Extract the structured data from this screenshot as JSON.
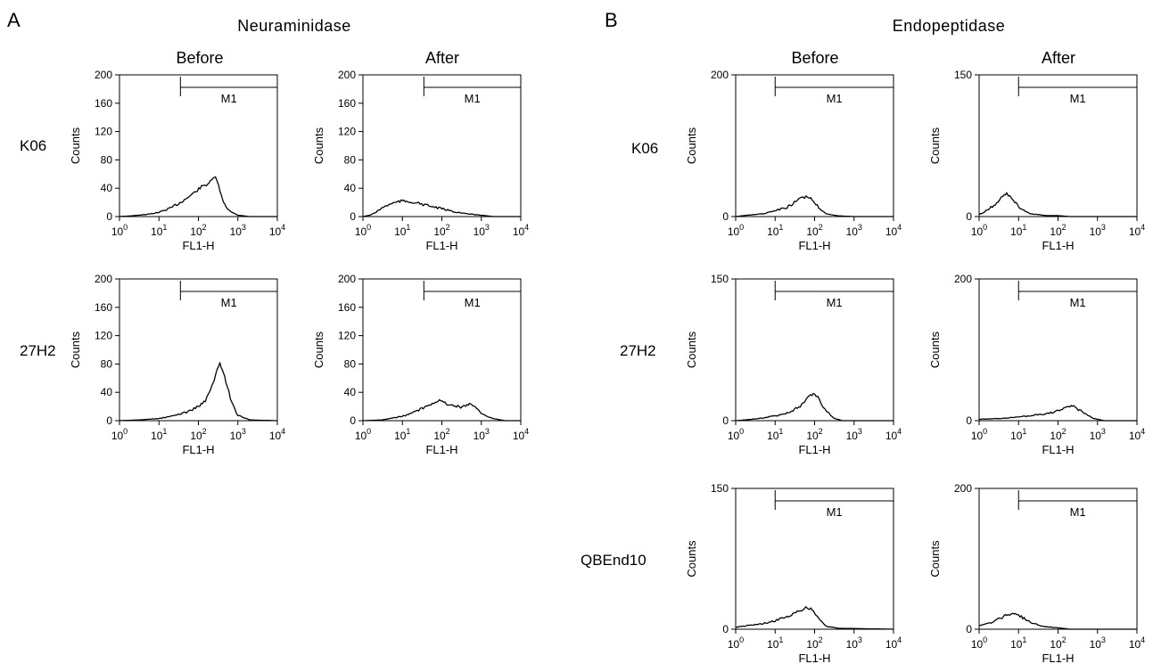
{
  "figure": {
    "panels": [
      {
        "letter": "A",
        "title": "Neuraminidase",
        "columns": [
          "Before",
          "After"
        ],
        "rows": [
          "K06",
          "27H2"
        ]
      },
      {
        "letter": "B",
        "title": "Endopeptidase",
        "columns": [
          "Before",
          "After"
        ],
        "rows": [
          "K06",
          "27H2",
          "QBEnd10"
        ]
      }
    ]
  },
  "chart_data": [
    {
      "type": "line",
      "panel": "A",
      "row": "K06",
      "column": "Before",
      "xlabel": "FL1-H",
      "ylabel": "Counts",
      "xscale": "log",
      "xlim": [
        1,
        10000
      ],
      "ylim": [
        0,
        200
      ],
      "yticks": [
        0,
        40,
        80,
        120,
        160,
        200
      ],
      "gate": {
        "label": "M1",
        "x_start": 35,
        "x_end": 10000
      },
      "x": [
        1,
        2,
        3,
        5,
        10,
        20,
        40,
        80,
        120,
        160,
        200,
        240,
        270,
        300,
        350,
        400,
        500,
        700,
        1000,
        2000,
        5000,
        10000
      ],
      "y": [
        0,
        1,
        2,
        3,
        6,
        12,
        22,
        34,
        42,
        45,
        49,
        53,
        57,
        50,
        36,
        25,
        14,
        6,
        2,
        0,
        0,
        0
      ]
    },
    {
      "type": "line",
      "panel": "A",
      "row": "K06",
      "column": "After",
      "xlabel": "FL1-H",
      "ylabel": "Counts",
      "xscale": "log",
      "xlim": [
        1,
        10000
      ],
      "ylim": [
        0,
        200
      ],
      "yticks": [
        0,
        40,
        80,
        120,
        160,
        200
      ],
      "gate": {
        "label": "M1",
        "x_start": 35,
        "x_end": 10000
      },
      "x": [
        1,
        1.5,
        2,
        3,
        5,
        8,
        10,
        15,
        20,
        40,
        100,
        200,
        400,
        1000,
        2000,
        5000,
        10000
      ],
      "y": [
        0,
        2,
        5,
        12,
        18,
        21,
        22,
        21,
        20,
        16,
        11,
        7,
        4,
        2,
        0,
        0,
        0
      ]
    },
    {
      "type": "line",
      "panel": "A",
      "row": "27H2",
      "column": "Before",
      "xlabel": "FL1-H",
      "ylabel": "Counts",
      "xscale": "log",
      "xlim": [
        1,
        10000
      ],
      "ylim": [
        0,
        200
      ],
      "yticks": [
        0,
        40,
        80,
        120,
        160,
        200
      ],
      "gate": {
        "label": "M1",
        "x_start": 35,
        "x_end": 10000
      },
      "x": [
        1,
        3,
        10,
        20,
        50,
        100,
        150,
        200,
        250,
        300,
        350,
        400,
        500,
        700,
        1000,
        2000,
        10000
      ],
      "y": [
        0,
        1,
        3,
        6,
        12,
        20,
        28,
        42,
        58,
        72,
        80,
        74,
        55,
        25,
        8,
        1,
        0
      ]
    },
    {
      "type": "line",
      "panel": "A",
      "row": "27H2",
      "column": "After",
      "xlabel": "FL1-H",
      "ylabel": "Counts",
      "xscale": "log",
      "xlim": [
        1,
        10000
      ],
      "ylim": [
        0,
        200
      ],
      "yticks": [
        0,
        40,
        80,
        120,
        160,
        200
      ],
      "gate": {
        "label": "M1",
        "x_start": 35,
        "x_end": 10000
      },
      "x": [
        1,
        3,
        10,
        20,
        40,
        80,
        120,
        200,
        300,
        400,
        500,
        700,
        1000,
        2000,
        4000,
        10000
      ],
      "y": [
        0,
        1,
        6,
        12,
        20,
        29,
        25,
        21,
        19,
        22,
        24,
        20,
        10,
        3,
        0,
        0
      ]
    },
    {
      "type": "line",
      "panel": "B",
      "row": "K06",
      "column": "Before",
      "xlabel": "FL1-H",
      "ylabel": "Counts",
      "xscale": "log",
      "xlim": [
        1,
        10000
      ],
      "ylim": [
        0,
        200
      ],
      "yticks": [
        0,
        200
      ],
      "gate": {
        "label": "M1",
        "x_start": 10,
        "x_end": 10000
      },
      "x": [
        1,
        2,
        5,
        10,
        20,
        40,
        60,
        80,
        100,
        150,
        200,
        400,
        1000,
        10000
      ],
      "y": [
        0,
        2,
        4,
        8,
        13,
        24,
        28,
        26,
        20,
        9,
        4,
        1,
        0,
        0
      ]
    },
    {
      "type": "line",
      "panel": "B",
      "row": "K06",
      "column": "After",
      "xlabel": "FL1-H",
      "ylabel": "Counts",
      "xscale": "log",
      "xlim": [
        1,
        10000
      ],
      "ylim": [
        0,
        150
      ],
      "yticks": [
        0,
        150
      ],
      "gate": {
        "label": "M1",
        "x_start": 10,
        "x_end": 10000
      },
      "x": [
        1,
        1.5,
        2,
        3,
        4,
        5,
        6,
        8,
        10,
        15,
        20,
        50,
        100,
        200,
        10000
      ],
      "y": [
        2,
        6,
        10,
        15,
        22,
        24,
        22,
        16,
        10,
        5,
        3,
        1,
        1,
        0,
        0
      ]
    },
    {
      "type": "line",
      "panel": "B",
      "row": "27H2",
      "column": "Before",
      "xlabel": "FL1-H",
      "ylabel": "Counts",
      "xscale": "log",
      "xlim": [
        1,
        10000
      ],
      "ylim": [
        0,
        150
      ],
      "yticks": [
        0,
        150
      ],
      "gate": {
        "label": "M1",
        "x_start": 10,
        "x_end": 10000
      },
      "x": [
        1,
        2,
        5,
        10,
        20,
        40,
        60,
        80,
        100,
        120,
        150,
        200,
        300,
        500,
        10000
      ],
      "y": [
        0,
        1,
        3,
        5,
        8,
        14,
        22,
        27,
        28,
        25,
        18,
        10,
        3,
        0,
        0
      ]
    },
    {
      "type": "line",
      "panel": "B",
      "row": "27H2",
      "column": "After",
      "xlabel": "FL1-H",
      "ylabel": "Counts",
      "xscale": "log",
      "xlim": [
        1,
        10000
      ],
      "ylim": [
        0,
        200
      ],
      "yticks": [
        0,
        200
      ],
      "gate": {
        "label": "M1",
        "x_start": 10,
        "x_end": 10000
      },
      "x": [
        1,
        3,
        10,
        20,
        50,
        100,
        150,
        200,
        250,
        300,
        500,
        800,
        1000,
        1500,
        10000
      ],
      "y": [
        2,
        3,
        5,
        7,
        10,
        14,
        17,
        20,
        21,
        17,
        10,
        3,
        2,
        0,
        0
      ]
    },
    {
      "type": "line",
      "panel": "B",
      "row": "QBEnd10",
      "column": "Before",
      "xlabel": "FL1-H",
      "ylabel": "Counts",
      "xscale": "log",
      "xlim": [
        1,
        10000
      ],
      "ylim": [
        0,
        150
      ],
      "yticks": [
        0,
        150
      ],
      "gate": {
        "label": "M1",
        "x_start": 10,
        "x_end": 10000
      },
      "x": [
        1,
        2,
        5,
        10,
        20,
        40,
        60,
        80,
        100,
        150,
        200,
        400,
        10000
      ],
      "y": [
        2,
        4,
        6,
        9,
        13,
        19,
        23,
        22,
        17,
        8,
        3,
        1,
        0
      ]
    },
    {
      "type": "line",
      "panel": "B",
      "row": "QBEnd10",
      "column": "After",
      "xlabel": "FL1-H",
      "ylabel": "Counts",
      "xscale": "log",
      "xlim": [
        1,
        10000
      ],
      "ylim": [
        0,
        200
      ],
      "yticks": [
        0,
        200
      ],
      "gate": {
        "label": "M1",
        "x_start": 10,
        "x_end": 10000
      },
      "x": [
        1,
        2,
        3,
        5,
        7,
        10,
        15,
        20,
        40,
        100,
        200,
        500,
        10000
      ],
      "y": [
        5,
        9,
        14,
        20,
        22,
        20,
        14,
        10,
        4,
        2,
        0,
        0,
        0
      ]
    }
  ]
}
